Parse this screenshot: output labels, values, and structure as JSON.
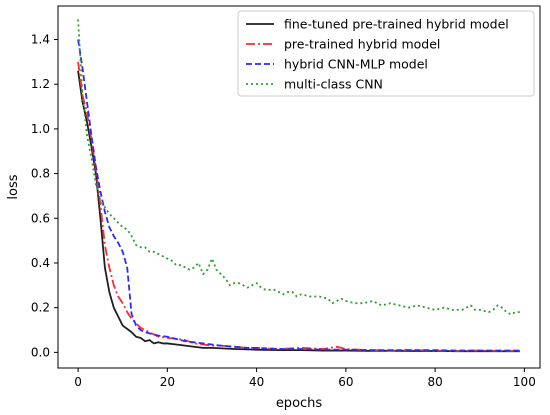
{
  "chart_data": {
    "type": "line",
    "title": "",
    "xlabel": "epochs",
    "ylabel": "loss",
    "xlim": [
      -4.5,
      103.5
    ],
    "ylim": [
      -0.07,
      1.55
    ],
    "xticks": [
      0,
      20,
      40,
      60,
      80,
      100
    ],
    "yticks": [
      0.0,
      0.2,
      0.4,
      0.6,
      0.8,
      1.0,
      1.2,
      1.4
    ],
    "xtick_labels": [
      "0",
      "20",
      "40",
      "60",
      "80",
      "100"
    ],
    "ytick_labels": [
      "0.0",
      "0.2",
      "0.4",
      "0.6",
      "0.8",
      "1.0",
      "1.2",
      "1.4"
    ],
    "grid": false,
    "legend_position": "top-right",
    "series": [
      {
        "name": "fine-tuned pre-trained hybrid model",
        "color": "#1f1f1f",
        "dash": "solid",
        "points": [
          [
            0,
            1.26
          ],
          [
            1,
            1.12
          ],
          [
            2,
            1.03
          ],
          [
            3,
            0.92
          ],
          [
            4,
            0.8
          ],
          [
            5,
            0.6
          ],
          [
            6,
            0.38
          ],
          [
            7,
            0.27
          ],
          [
            8,
            0.2
          ],
          [
            9,
            0.16
          ],
          [
            10,
            0.12
          ],
          [
            11,
            0.105
          ],
          [
            12,
            0.09
          ],
          [
            13,
            0.07
          ],
          [
            14,
            0.065
          ],
          [
            15,
            0.05
          ],
          [
            16,
            0.055
          ],
          [
            17,
            0.04
          ],
          [
            18,
            0.045
          ],
          [
            19,
            0.04
          ],
          [
            20,
            0.04
          ],
          [
            22,
            0.035
          ],
          [
            24,
            0.03
          ],
          [
            26,
            0.025
          ],
          [
            28,
            0.02
          ],
          [
            30,
            0.02
          ],
          [
            35,
            0.015
          ],
          [
            40,
            0.012
          ],
          [
            45,
            0.01
          ],
          [
            50,
            0.01
          ],
          [
            55,
            0.008
          ],
          [
            60,
            0.008
          ],
          [
            65,
            0.007
          ],
          [
            70,
            0.007
          ],
          [
            75,
            0.006
          ],
          [
            80,
            0.006
          ],
          [
            85,
            0.005
          ],
          [
            90,
            0.005
          ],
          [
            95,
            0.005
          ],
          [
            99,
            0.005
          ]
        ]
      },
      {
        "name": "pre-trained hybrid model",
        "color": "#ff2a2a",
        "dash": "dashdot",
        "points": [
          [
            0,
            1.3
          ],
          [
            1,
            1.15
          ],
          [
            2,
            1.07
          ],
          [
            3,
            0.95
          ],
          [
            4,
            0.82
          ],
          [
            5,
            0.66
          ],
          [
            6,
            0.48
          ],
          [
            7,
            0.38
          ],
          [
            8,
            0.3
          ],
          [
            9,
            0.25
          ],
          [
            10,
            0.22
          ],
          [
            11,
            0.18
          ],
          [
            12,
            0.15
          ],
          [
            13,
            0.13
          ],
          [
            14,
            0.11
          ],
          [
            15,
            0.1
          ],
          [
            16,
            0.09
          ],
          [
            17,
            0.08
          ],
          [
            18,
            0.07
          ],
          [
            20,
            0.065
          ],
          [
            22,
            0.06
          ],
          [
            24,
            0.055
          ],
          [
            26,
            0.04
          ],
          [
            28,
            0.035
          ],
          [
            30,
            0.03
          ],
          [
            32,
            0.03
          ],
          [
            35,
            0.025
          ],
          [
            38,
            0.02
          ],
          [
            40,
            0.02
          ],
          [
            45,
            0.015
          ],
          [
            50,
            0.02
          ],
          [
            55,
            0.015
          ],
          [
            58,
            0.025
          ],
          [
            60,
            0.015
          ],
          [
            65,
            0.01
          ],
          [
            70,
            0.008
          ],
          [
            75,
            0.01
          ],
          [
            80,
            0.008
          ],
          [
            85,
            0.006
          ],
          [
            90,
            0.008
          ],
          [
            95,
            0.006
          ],
          [
            99,
            0.006
          ]
        ]
      },
      {
        "name": "hybrid CNN-MLP model",
        "color": "#2a2aff",
        "dash": "dashed",
        "points": [
          [
            0,
            1.4
          ],
          [
            1,
            1.27
          ],
          [
            2,
            1.12
          ],
          [
            3,
            0.97
          ],
          [
            4,
            0.83
          ],
          [
            5,
            0.72
          ],
          [
            6,
            0.63
          ],
          [
            7,
            0.56
          ],
          [
            8,
            0.52
          ],
          [
            9,
            0.49
          ],
          [
            10,
            0.45
          ],
          [
            11,
            0.38
          ],
          [
            12,
            0.17
          ],
          [
            13,
            0.12
          ],
          [
            14,
            0.1
          ],
          [
            15,
            0.09
          ],
          [
            16,
            0.085
          ],
          [
            17,
            0.08
          ],
          [
            18,
            0.075
          ],
          [
            20,
            0.07
          ],
          [
            22,
            0.06
          ],
          [
            24,
            0.05
          ],
          [
            26,
            0.045
          ],
          [
            28,
            0.04
          ],
          [
            30,
            0.035
          ],
          [
            32,
            0.03
          ],
          [
            35,
            0.025
          ],
          [
            38,
            0.02
          ],
          [
            40,
            0.02
          ],
          [
            45,
            0.015
          ],
          [
            50,
            0.015
          ],
          [
            55,
            0.012
          ],
          [
            60,
            0.012
          ],
          [
            65,
            0.01
          ],
          [
            70,
            0.01
          ],
          [
            75,
            0.01
          ],
          [
            80,
            0.01
          ],
          [
            85,
            0.008
          ],
          [
            90,
            0.008
          ],
          [
            95,
            0.008
          ],
          [
            99,
            0.008
          ]
        ]
      },
      {
        "name": "multi-class CNN",
        "color": "#2ca02c",
        "dash": "dotted",
        "points": [
          [
            0,
            1.49
          ],
          [
            1,
            1.15
          ],
          [
            2,
            0.97
          ],
          [
            3,
            0.87
          ],
          [
            4,
            0.75
          ],
          [
            5,
            0.68
          ],
          [
            6,
            0.65
          ],
          [
            7,
            0.62
          ],
          [
            8,
            0.6
          ],
          [
            9,
            0.58
          ],
          [
            10,
            0.56
          ],
          [
            11,
            0.55
          ],
          [
            12,
            0.52
          ],
          [
            13,
            0.48
          ],
          [
            14,
            0.47
          ],
          [
            15,
            0.47
          ],
          [
            16,
            0.45
          ],
          [
            17,
            0.45
          ],
          [
            18,
            0.44
          ],
          [
            19,
            0.43
          ],
          [
            20,
            0.42
          ],
          [
            21,
            0.41
          ],
          [
            22,
            0.39
          ],
          [
            23,
            0.39
          ],
          [
            24,
            0.38
          ],
          [
            25,
            0.37
          ],
          [
            26,
            0.38
          ],
          [
            27,
            0.4
          ],
          [
            28,
            0.35
          ],
          [
            29,
            0.37
          ],
          [
            30,
            0.42
          ],
          [
            31,
            0.37
          ],
          [
            32,
            0.35
          ],
          [
            33,
            0.33
          ],
          [
            34,
            0.3
          ],
          [
            35,
            0.31
          ],
          [
            36,
            0.31
          ],
          [
            37,
            0.3
          ],
          [
            38,
            0.29
          ],
          [
            39,
            0.3
          ],
          [
            40,
            0.31
          ],
          [
            41,
            0.29
          ],
          [
            42,
            0.28
          ],
          [
            43,
            0.28
          ],
          [
            44,
            0.28
          ],
          [
            45,
            0.27
          ],
          [
            46,
            0.26
          ],
          [
            47,
            0.27
          ],
          [
            48,
            0.27
          ],
          [
            49,
            0.25
          ],
          [
            50,
            0.26
          ],
          [
            52,
            0.25
          ],
          [
            54,
            0.25
          ],
          [
            56,
            0.24
          ],
          [
            57,
            0.22
          ],
          [
            58,
            0.23
          ],
          [
            59,
            0.24
          ],
          [
            60,
            0.23
          ],
          [
            62,
            0.22
          ],
          [
            64,
            0.22
          ],
          [
            66,
            0.23
          ],
          [
            68,
            0.21
          ],
          [
            70,
            0.22
          ],
          [
            72,
            0.21
          ],
          [
            74,
            0.2
          ],
          [
            76,
            0.21
          ],
          [
            78,
            0.2
          ],
          [
            80,
            0.19
          ],
          [
            82,
            0.2
          ],
          [
            84,
            0.19
          ],
          [
            86,
            0.19
          ],
          [
            88,
            0.21
          ],
          [
            89,
            0.19
          ],
          [
            90,
            0.19
          ],
          [
            92,
            0.18
          ],
          [
            93,
            0.19
          ],
          [
            94,
            0.21
          ],
          [
            95,
            0.2
          ],
          [
            96,
            0.18
          ],
          [
            97,
            0.17
          ],
          [
            98,
            0.18
          ],
          [
            99,
            0.18
          ]
        ]
      }
    ]
  }
}
